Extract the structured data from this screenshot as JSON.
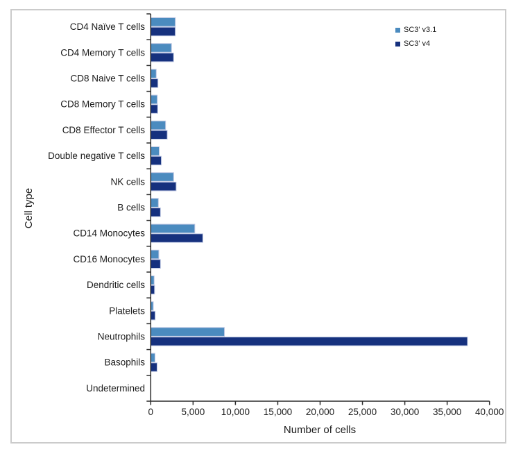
{
  "chart_data": {
    "type": "bar",
    "orientation": "horizontal",
    "title": "",
    "xlabel": "Number of cells",
    "ylabel": "Cell type",
    "xlim": [
      0,
      40000
    ],
    "xticks": [
      0,
      5000,
      10000,
      15000,
      20000,
      25000,
      30000,
      35000,
      40000
    ],
    "xtick_labels": [
      "0",
      "5,000",
      "10,000",
      "15,000",
      "20,000",
      "25,000",
      "30,000",
      "35,000",
      "40,000"
    ],
    "categories": [
      "CD4 Naïve T cells",
      "CD4 Memory T cells",
      "CD8 Naive T cells",
      "CD8 Memory T cells",
      "CD8 Effector T cells",
      "Double negative T cells",
      "NK cells",
      "B cells",
      "CD14 Monocytes",
      "CD16 Monocytes",
      "Dendritic cells",
      "Platelets",
      "Neutrophils",
      "Basophils",
      "Undetermined"
    ],
    "series": [
      {
        "name": "SC3' v3.1",
        "color": "#4B8BBF",
        "values": [
          2900,
          2450,
          650,
          770,
          1750,
          1000,
          2700,
          900,
          5200,
          950,
          400,
          300,
          8700,
          500,
          0
        ]
      },
      {
        "name": "SC3' v4",
        "color": "#16317E",
        "values": [
          2900,
          2700,
          850,
          820,
          1950,
          1250,
          3000,
          1150,
          6150,
          1150,
          450,
          520,
          37400,
          750,
          0
        ]
      }
    ],
    "legend_position": "top-right",
    "grid": false,
    "colors": {
      "axis": "#2b2b2b",
      "text": "#1a1a1a",
      "bar_border": "#bcc6e2",
      "frame_border": "#cbcbcb"
    }
  }
}
